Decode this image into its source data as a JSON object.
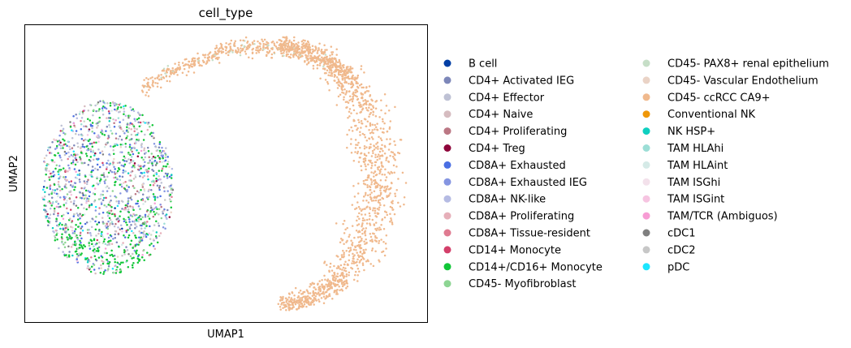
{
  "chart_data": {
    "type": "scatter",
    "title": "cell_type",
    "xlabel": "UMAP1",
    "ylabel": "UMAP2",
    "xticks": [],
    "yticks": [],
    "xlim": [
      -1.0,
      1.0
    ],
    "ylim": [
      -1.0,
      1.0
    ],
    "legend_placement": "right, outside plot, two columns",
    "categories": [
      {
        "name": "B cell",
        "color": "#023fa5"
      },
      {
        "name": "CD4+ Activated IEG",
        "color": "#7d87b9"
      },
      {
        "name": "CD4+ Effector",
        "color": "#bec1d4"
      },
      {
        "name": "CD4+ Naive",
        "color": "#d6bcc0"
      },
      {
        "name": "CD4+ Proliferating",
        "color": "#bb7784"
      },
      {
        "name": "CD4+ Treg",
        "color": "#8e063b"
      },
      {
        "name": "CD8A+ Exhausted",
        "color": "#4a6fe3"
      },
      {
        "name": "CD8A+ Exhausted IEG",
        "color": "#8595e1"
      },
      {
        "name": "CD8A+ NK-like",
        "color": "#b5bbe3"
      },
      {
        "name": "CD8A+ Proliferating",
        "color": "#e6afb9"
      },
      {
        "name": "CD8A+ Tissue-resident",
        "color": "#e07b91"
      },
      {
        "name": "CD14+ Monocyte",
        "color": "#d33f6a"
      },
      {
        "name": "CD14+/CD16+ Monocyte",
        "color": "#11c638"
      },
      {
        "name": "CD45- Myofibroblast",
        "color": "#8dd593"
      },
      {
        "name": "CD45- PAX8+ renal epithelium",
        "color": "#c6dec7"
      },
      {
        "name": "CD45- Vascular Endothelium",
        "color": "#ead3c6"
      },
      {
        "name": "CD45- ccRCC CA9+",
        "color": "#f0b98d"
      },
      {
        "name": "Conventional NK",
        "color": "#ef9708"
      },
      {
        "name": "NK HSP+",
        "color": "#0fcfc0"
      },
      {
        "name": "TAM HLAhi",
        "color": "#9cded6"
      },
      {
        "name": "TAM HLAint",
        "color": "#d5eae7"
      },
      {
        "name": "TAM ISGhi",
        "color": "#f3e1eb"
      },
      {
        "name": "TAM ISGint",
        "color": "#f6c4e1"
      },
      {
        "name": "TAM/TCR (Ambiguos)",
        "color": "#f79cd4"
      },
      {
        "name": "cDC1",
        "color": "#7f7f7f"
      },
      {
        "name": "cDC2",
        "color": "#c7c7c7"
      },
      {
        "name": "pDC",
        "color": "#1ce6ff"
      }
    ],
    "clusters": [
      {
        "region": "immune blob (left)",
        "dominant": [
          "CD14+/CD16+ Monocyte",
          "CD8A+ Exhausted",
          "CD8A+ Exhausted IEG",
          "CD4+ Activated IEG",
          "cDC2"
        ]
      },
      {
        "region": "arc and right crescent",
        "dominant": [
          "CD45- ccRCC CA9+"
        ]
      }
    ]
  }
}
